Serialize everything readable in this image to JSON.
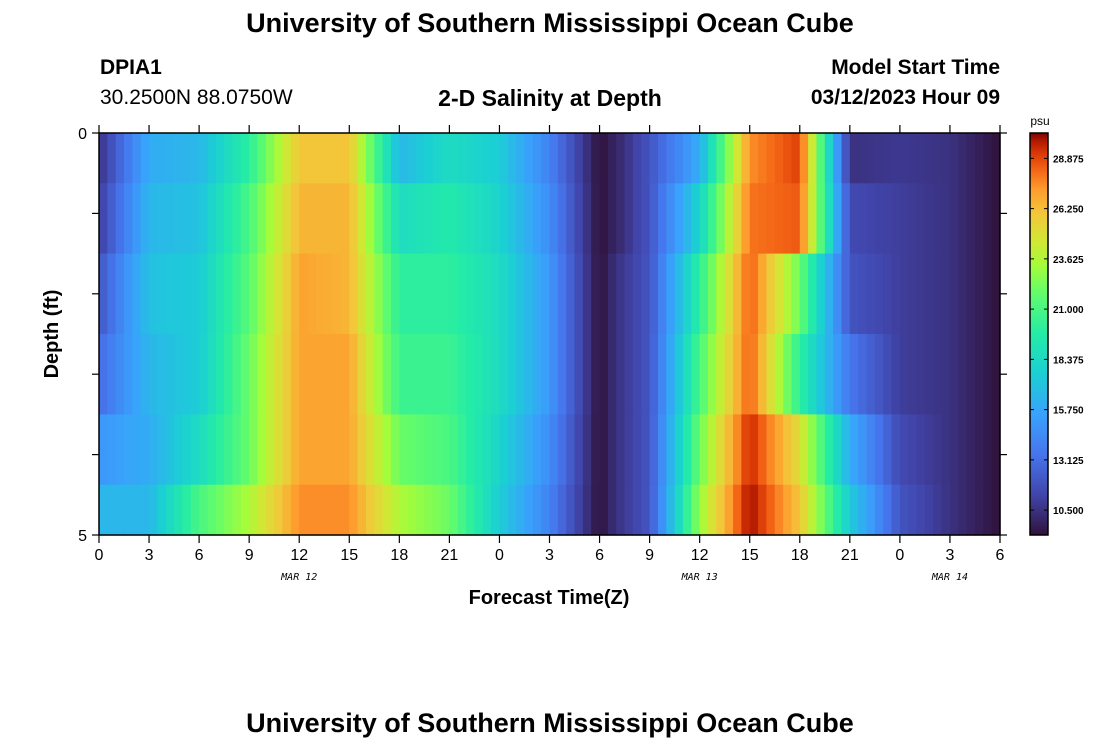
{
  "header": {
    "title": "University of Southern Mississippi Ocean Cube",
    "station_id": "DPIA1",
    "coordinates": "30.2500N  88.0750W",
    "subtitle": "2-D Salinity at Depth",
    "start_label": "Model Start Time",
    "start_value": "03/12/2023 Hour 09"
  },
  "footer": {
    "title": "University of Southern Mississippi Ocean Cube"
  },
  "chart_data": {
    "type": "heatmap",
    "title": "2-D Salinity at Depth",
    "xlabel": "Forecast Time(Z)",
    "ylabel": "Depth (ft)",
    "x_tick_labels": [
      "0",
      "3",
      "6",
      "9",
      "12",
      "15",
      "18",
      "21",
      "0",
      "3",
      "6",
      "9",
      "12",
      "15",
      "18",
      "21",
      "0",
      "3",
      "6"
    ],
    "y_tick_labels": [
      "0",
      "5"
    ],
    "ylim": [
      0,
      5
    ],
    "date_labels": [
      "MAR 12",
      "MAR 13",
      "MAR 14"
    ],
    "colorbar": {
      "unit": "psu",
      "ticks": [
        "28.875",
        "26.250",
        "23.625",
        "21.000",
        "18.375",
        "15.750",
        "13.125",
        "10.500"
      ],
      "range": [
        9.2,
        30.2
      ]
    },
    "depth_rows_ft": [
      0.25,
      1.0,
      2.0,
      3.0,
      4.0,
      4.75
    ],
    "hours": [
      0,
      3,
      6,
      9,
      12,
      15,
      18,
      21,
      24,
      27,
      30,
      31,
      33,
      36,
      39,
      42,
      45,
      48,
      51,
      54
    ],
    "salinity": [
      [
        10.5,
        16.0,
        16.5,
        20.0,
        26.0,
        26.0,
        16.5,
        18.5,
        17.5,
        14.0,
        9.2,
        10.0,
        12.0,
        16.0,
        27.5,
        29.0,
        10.5,
        10.8,
        10.5,
        9.2
      ],
      [
        11.0,
        16.5,
        17.0,
        21.0,
        26.5,
        26.5,
        18.5,
        19.5,
        18.0,
        14.5,
        9.2,
        10.0,
        12.0,
        18.0,
        28.0,
        28.5,
        11.5,
        11.0,
        10.5,
        9.2
      ],
      [
        12.0,
        17.0,
        17.5,
        21.5,
        27.0,
        26.5,
        20.0,
        20.0,
        18.5,
        15.0,
        9.2,
        10.5,
        12.0,
        20.0,
        28.5,
        22.0,
        12.0,
        11.0,
        10.5,
        9.2
      ],
      [
        13.0,
        16.5,
        17.5,
        22.0,
        27.0,
        27.0,
        20.5,
        20.5,
        18.5,
        15.0,
        9.2,
        10.5,
        12.0,
        21.0,
        28.5,
        20.0,
        13.5,
        11.0,
        10.5,
        9.2
      ],
      [
        15.0,
        16.0,
        18.5,
        22.0,
        27.0,
        27.0,
        22.0,
        21.0,
        18.0,
        14.5,
        9.2,
        10.5,
        12.0,
        22.0,
        29.5,
        25.0,
        16.0,
        11.5,
        10.5,
        9.2
      ],
      [
        16.5,
        16.5,
        21.0,
        23.5,
        27.5,
        27.5,
        23.5,
        22.0,
        17.5,
        14.0,
        9.2,
        10.5,
        12.0,
        23.0,
        30.0,
        26.0,
        17.5,
        12.0,
        10.5,
        9.2
      ]
    ]
  }
}
